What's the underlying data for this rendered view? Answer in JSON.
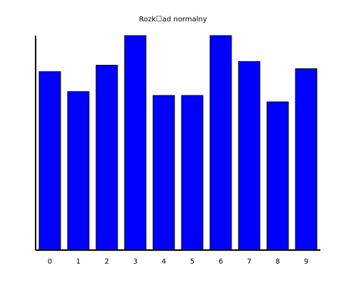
{
  "chart_data": {
    "type": "bar",
    "title": "Rozk☐ad normalny",
    "categories": [
      "0",
      "1",
      "2",
      "3",
      "4",
      "5",
      "6",
      "7",
      "8",
      "9"
    ],
    "values": [
      8.32,
      7.39,
      8.62,
      10.0,
      7.21,
      7.21,
      10.0,
      8.79,
      6.91,
      8.46
    ],
    "ylim": [
      0,
      10
    ],
    "xlabel": "",
    "ylabel": "",
    "grid": false,
    "colors": {
      "bar": "#0000ff",
      "bar_edge": "#000000",
      "axis": "#000000"
    }
  }
}
